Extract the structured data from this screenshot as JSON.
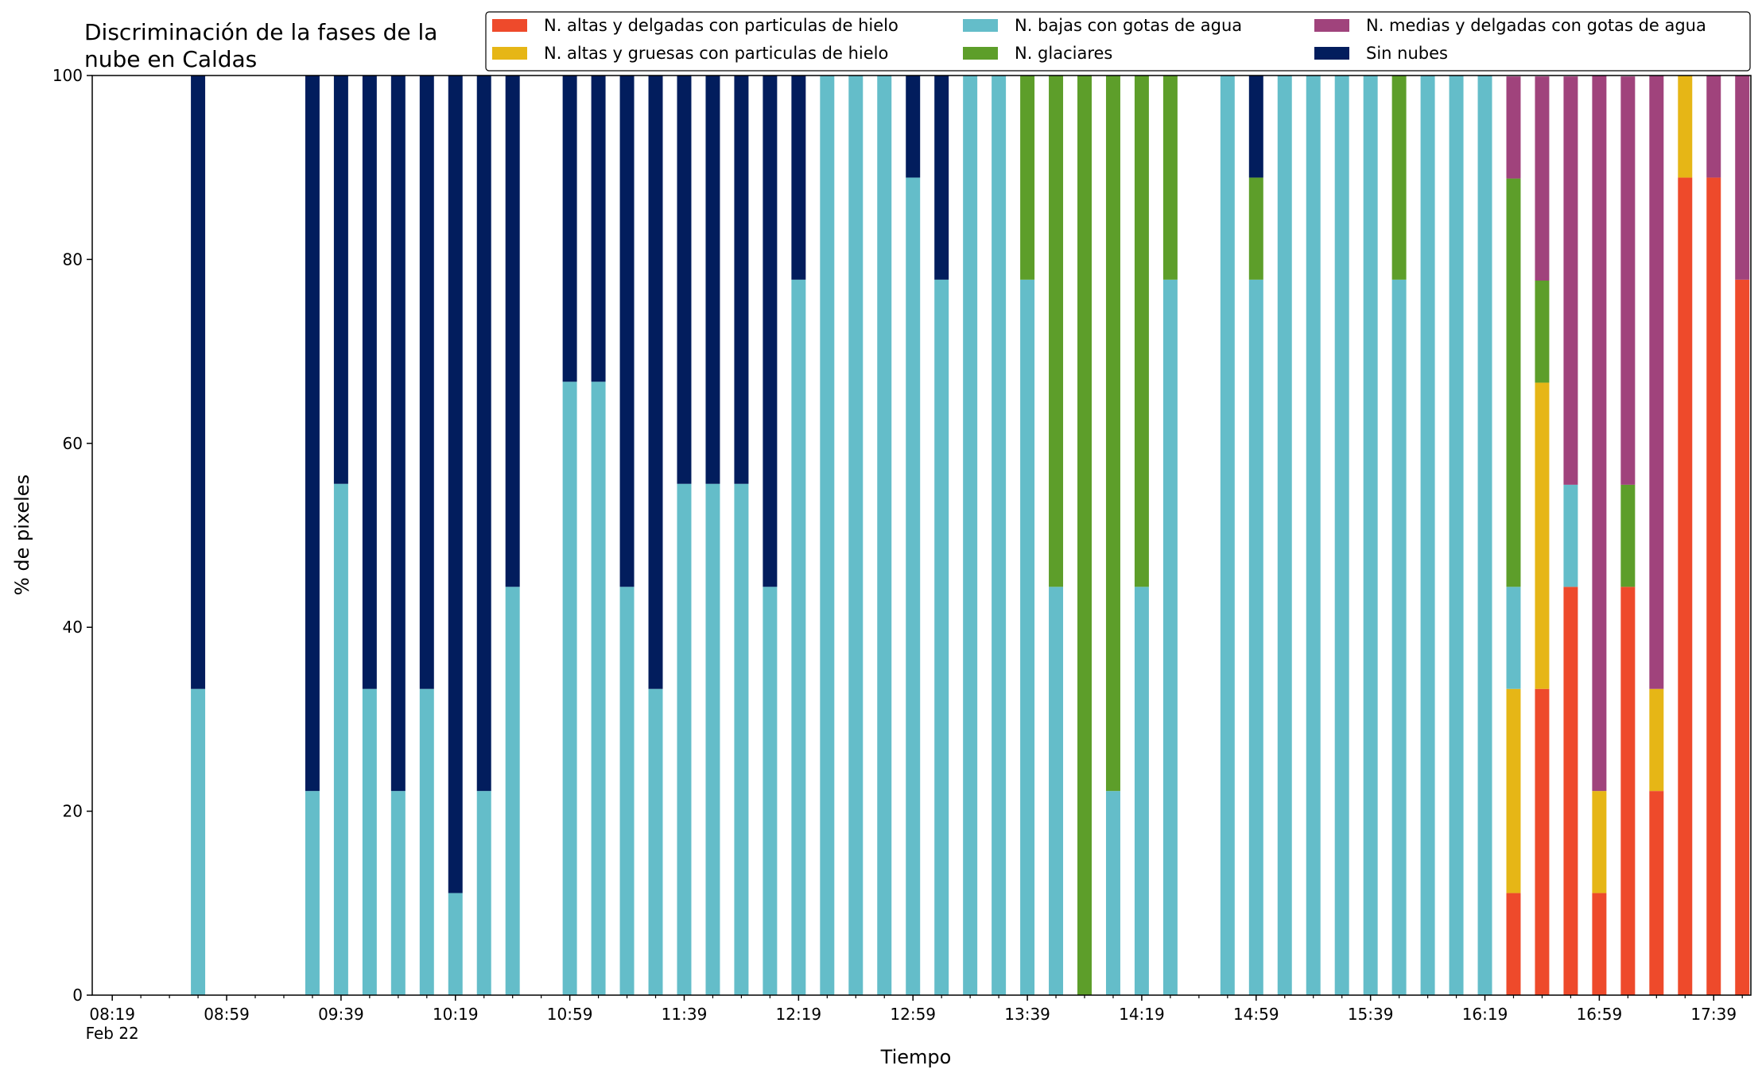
{
  "chart_data": {
    "type": "bar",
    "stacked": true,
    "title_lines": [
      "Discriminación de la fases de la",
      "nube en Caldas"
    ],
    "xlabel": "Tiempo",
    "ylabel": "% de pixeles",
    "ylim": [
      0,
      100
    ],
    "yticks": [
      0,
      20,
      40,
      60,
      80,
      100
    ],
    "xlim": [
      "08:12",
      "17:52"
    ],
    "x_major_ticks": [
      {
        "x": "08:19",
        "label": "08:19",
        "sublabel": "Feb 22"
      },
      {
        "x": "08:59",
        "label": "08:59"
      },
      {
        "x": "09:39",
        "label": "09:39"
      },
      {
        "x": "10:19",
        "label": "10:19"
      },
      {
        "x": "10:59",
        "label": "10:59"
      },
      {
        "x": "11:39",
        "label": "11:39"
      },
      {
        "x": "12:19",
        "label": "12:19"
      },
      {
        "x": "12:59",
        "label": "12:59"
      },
      {
        "x": "13:39",
        "label": "13:39"
      },
      {
        "x": "14:19",
        "label": "14:19"
      },
      {
        "x": "14:59",
        "label": "14:59"
      },
      {
        "x": "15:39",
        "label": "15:39"
      },
      {
        "x": "16:19",
        "label": "16:19"
      },
      {
        "x": "16:59",
        "label": "16:59"
      },
      {
        "x": "17:39",
        "label": "17:39"
      }
    ],
    "x_minor_step_minutes": 10,
    "bar_width_minutes": 5,
    "grid": false,
    "legend_position": "top-right",
    "series": [
      {
        "key": "hi_thin",
        "name": "N. altas y delgadas con particulas de hielo",
        "color": "#ee4a2b"
      },
      {
        "key": "hi_thick",
        "name": "N. altas y gruesas con particulas de hielo",
        "color": "#e6b616"
      },
      {
        "key": "low_water",
        "name": "N. bajas con gotas de agua",
        "color": "#64bdc9"
      },
      {
        "key": "glacier",
        "name": "N. glaciares",
        "color": "#5d9e2a"
      },
      {
        "key": "mid_water",
        "name": "N. medias y delgadas con gotas de agua",
        "color": "#a0437c"
      },
      {
        "key": "no_cloud",
        "name": "Sin nubes",
        "color": "#021d5d"
      }
    ],
    "points": [
      {
        "time": "08:49",
        "low_water": 33.3,
        "no_cloud": 66.7
      },
      {
        "time": "09:29",
        "low_water": 22.2,
        "no_cloud": 77.8
      },
      {
        "time": "09:39",
        "low_water": 55.6,
        "no_cloud": 44.4
      },
      {
        "time": "09:49",
        "low_water": 33.3,
        "no_cloud": 66.7
      },
      {
        "time": "09:59",
        "low_water": 22.2,
        "no_cloud": 77.8
      },
      {
        "time": "10:09",
        "low_water": 33.3,
        "no_cloud": 66.7
      },
      {
        "time": "10:19",
        "low_water": 11.1,
        "no_cloud": 88.9
      },
      {
        "time": "10:29",
        "low_water": 22.2,
        "no_cloud": 77.8
      },
      {
        "time": "10:39",
        "low_water": 44.4,
        "no_cloud": 55.6
      },
      {
        "time": "10:59",
        "low_water": 66.7,
        "no_cloud": 33.3
      },
      {
        "time": "11:09",
        "low_water": 66.7,
        "no_cloud": 33.3
      },
      {
        "time": "11:19",
        "low_water": 44.4,
        "no_cloud": 55.6
      },
      {
        "time": "11:29",
        "low_water": 33.3,
        "no_cloud": 66.7
      },
      {
        "time": "11:39",
        "low_water": 55.6,
        "no_cloud": 44.4
      },
      {
        "time": "11:49",
        "low_water": 55.6,
        "no_cloud": 44.4
      },
      {
        "time": "11:59",
        "low_water": 55.6,
        "no_cloud": 44.4
      },
      {
        "time": "12:09",
        "low_water": 44.4,
        "no_cloud": 55.6
      },
      {
        "time": "12:19",
        "low_water": 77.8,
        "no_cloud": 22.2
      },
      {
        "time": "12:29",
        "low_water": 100
      },
      {
        "time": "12:39",
        "low_water": 100
      },
      {
        "time": "12:49",
        "low_water": 100
      },
      {
        "time": "12:59",
        "low_water": 88.9,
        "no_cloud": 11.1
      },
      {
        "time": "13:09",
        "low_water": 77.8,
        "no_cloud": 22.2
      },
      {
        "time": "13:19",
        "low_water": 100
      },
      {
        "time": "13:29",
        "low_water": 100
      },
      {
        "time": "13:39",
        "low_water": 77.8,
        "glacier": 22.2
      },
      {
        "time": "13:49",
        "low_water": 44.4,
        "glacier": 55.6
      },
      {
        "time": "13:59",
        "glacier": 100
      },
      {
        "time": "14:09",
        "low_water": 22.2,
        "glacier": 77.8
      },
      {
        "time": "14:19",
        "low_water": 44.4,
        "glacier": 55.6
      },
      {
        "time": "14:29",
        "low_water": 77.8,
        "glacier": 22.2
      },
      {
        "time": "14:49",
        "low_water": 100
      },
      {
        "time": "14:59",
        "low_water": 77.8,
        "glacier": 11.1,
        "no_cloud": 11.1
      },
      {
        "time": "15:09",
        "low_water": 100
      },
      {
        "time": "15:19",
        "low_water": 100
      },
      {
        "time": "15:29",
        "low_water": 100
      },
      {
        "time": "15:39",
        "low_water": 100
      },
      {
        "time": "15:49",
        "low_water": 77.8,
        "glacier": 22.2
      },
      {
        "time": "15:59",
        "low_water": 100
      },
      {
        "time": "16:09",
        "low_water": 100
      },
      {
        "time": "16:19",
        "low_water": 100
      },
      {
        "time": "16:29",
        "hi_thin": 11.1,
        "hi_thick": 22.2,
        "low_water": 11.1,
        "glacier": 44.4,
        "mid_water": 11.1
      },
      {
        "time": "16:39",
        "hi_thin": 33.3,
        "hi_thick": 33.3,
        "glacier": 11.1,
        "mid_water": 22.2
      },
      {
        "time": "16:49",
        "hi_thin": 44.4,
        "low_water": 11.1,
        "mid_water": 44.4
      },
      {
        "time": "16:59",
        "hi_thin": 11.1,
        "hi_thick": 11.1,
        "mid_water": 77.8
      },
      {
        "time": "17:09",
        "hi_thin": 44.4,
        "glacier": 11.1,
        "mid_water": 44.4
      },
      {
        "time": "17:19",
        "hi_thin": 22.2,
        "hi_thick": 11.1,
        "mid_water": 66.7
      },
      {
        "time": "17:29",
        "hi_thin": 88.9,
        "hi_thick": 11.1
      },
      {
        "time": "17:39",
        "hi_thin": 88.9,
        "mid_water": 11.1
      },
      {
        "time": "17:49",
        "hi_thin": 77.8,
        "mid_water": 22.2
      }
    ]
  }
}
